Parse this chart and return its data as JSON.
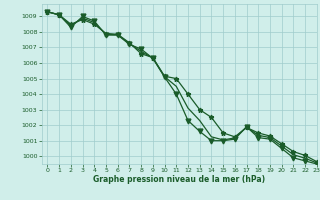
{
  "xlabel": "Graphe pression niveau de la mer (hPa)",
  "xlim": [
    -0.5,
    23
  ],
  "ylim": [
    999.5,
    1009.8
  ],
  "yticks": [
    1000,
    1001,
    1002,
    1003,
    1004,
    1005,
    1006,
    1007,
    1008,
    1009
  ],
  "xticks": [
    0,
    1,
    2,
    3,
    4,
    5,
    6,
    7,
    8,
    9,
    10,
    11,
    12,
    13,
    14,
    15,
    16,
    17,
    18,
    19,
    20,
    21,
    22,
    23
  ],
  "bg_color": "#d0eeea",
  "grid_color": "#a0cccc",
  "line_color": "#1a5c2a",
  "line1": [
    1009.3,
    1009.1,
    1008.3,
    1009.0,
    1008.7,
    1007.8,
    1007.8,
    1007.2,
    1006.9,
    1006.3,
    1005.1,
    1004.0,
    1002.3,
    1001.6,
    1001.0,
    1001.0,
    1001.1,
    1001.9,
    1001.2,
    1001.1,
    1000.5,
    999.9,
    999.7,
    999.5
  ],
  "line2": [
    1009.3,
    1009.1,
    1008.5,
    1008.8,
    1008.5,
    1007.9,
    1007.85,
    1007.3,
    1006.6,
    1006.35,
    1005.15,
    1005.0,
    1004.0,
    1003.0,
    1002.5,
    1001.5,
    1001.25,
    1001.85,
    1001.5,
    1001.3,
    1000.8,
    1000.3,
    1000.05,
    999.65
  ],
  "line3": [
    1009.3,
    1009.1,
    1008.4,
    1008.9,
    1008.6,
    1007.85,
    1007.82,
    1007.25,
    1006.75,
    1006.32,
    1005.12,
    1004.5,
    1003.1,
    1002.3,
    1001.25,
    1001.05,
    1001.18,
    1001.87,
    1001.35,
    1001.2,
    1000.65,
    1000.1,
    999.87,
    999.57
  ],
  "m1_x": [
    0,
    1,
    2,
    3,
    4,
    5,
    6,
    7,
    8,
    9,
    10,
    11,
    12,
    13,
    14,
    15,
    16,
    17,
    18,
    19,
    20,
    21,
    22,
    23
  ],
  "m1_y": [
    1009.3,
    1009.1,
    1008.3,
    1009.0,
    1008.7,
    1007.8,
    1007.8,
    1007.2,
    1006.9,
    1006.3,
    1005.1,
    1004.0,
    1002.3,
    1001.6,
    1001.0,
    1001.0,
    1001.1,
    1001.9,
    1001.2,
    1001.1,
    1000.5,
    999.9,
    999.7,
    999.5
  ],
  "m2_x": [
    0,
    1,
    2,
    3,
    4,
    5,
    6,
    7,
    8,
    9,
    10,
    11,
    12,
    13,
    14,
    15,
    16,
    17,
    18,
    19,
    20,
    21,
    22,
    23
  ],
  "m2_y": [
    1009.3,
    1009.1,
    1008.5,
    1008.8,
    1008.5,
    1007.9,
    1007.85,
    1007.3,
    1006.6,
    1006.35,
    1005.15,
    1005.0,
    1004.0,
    1003.0,
    1002.5,
    1001.5,
    1001.25,
    1001.85,
    1001.5,
    1001.3,
    1000.8,
    1000.3,
    1000.05,
    999.65
  ]
}
